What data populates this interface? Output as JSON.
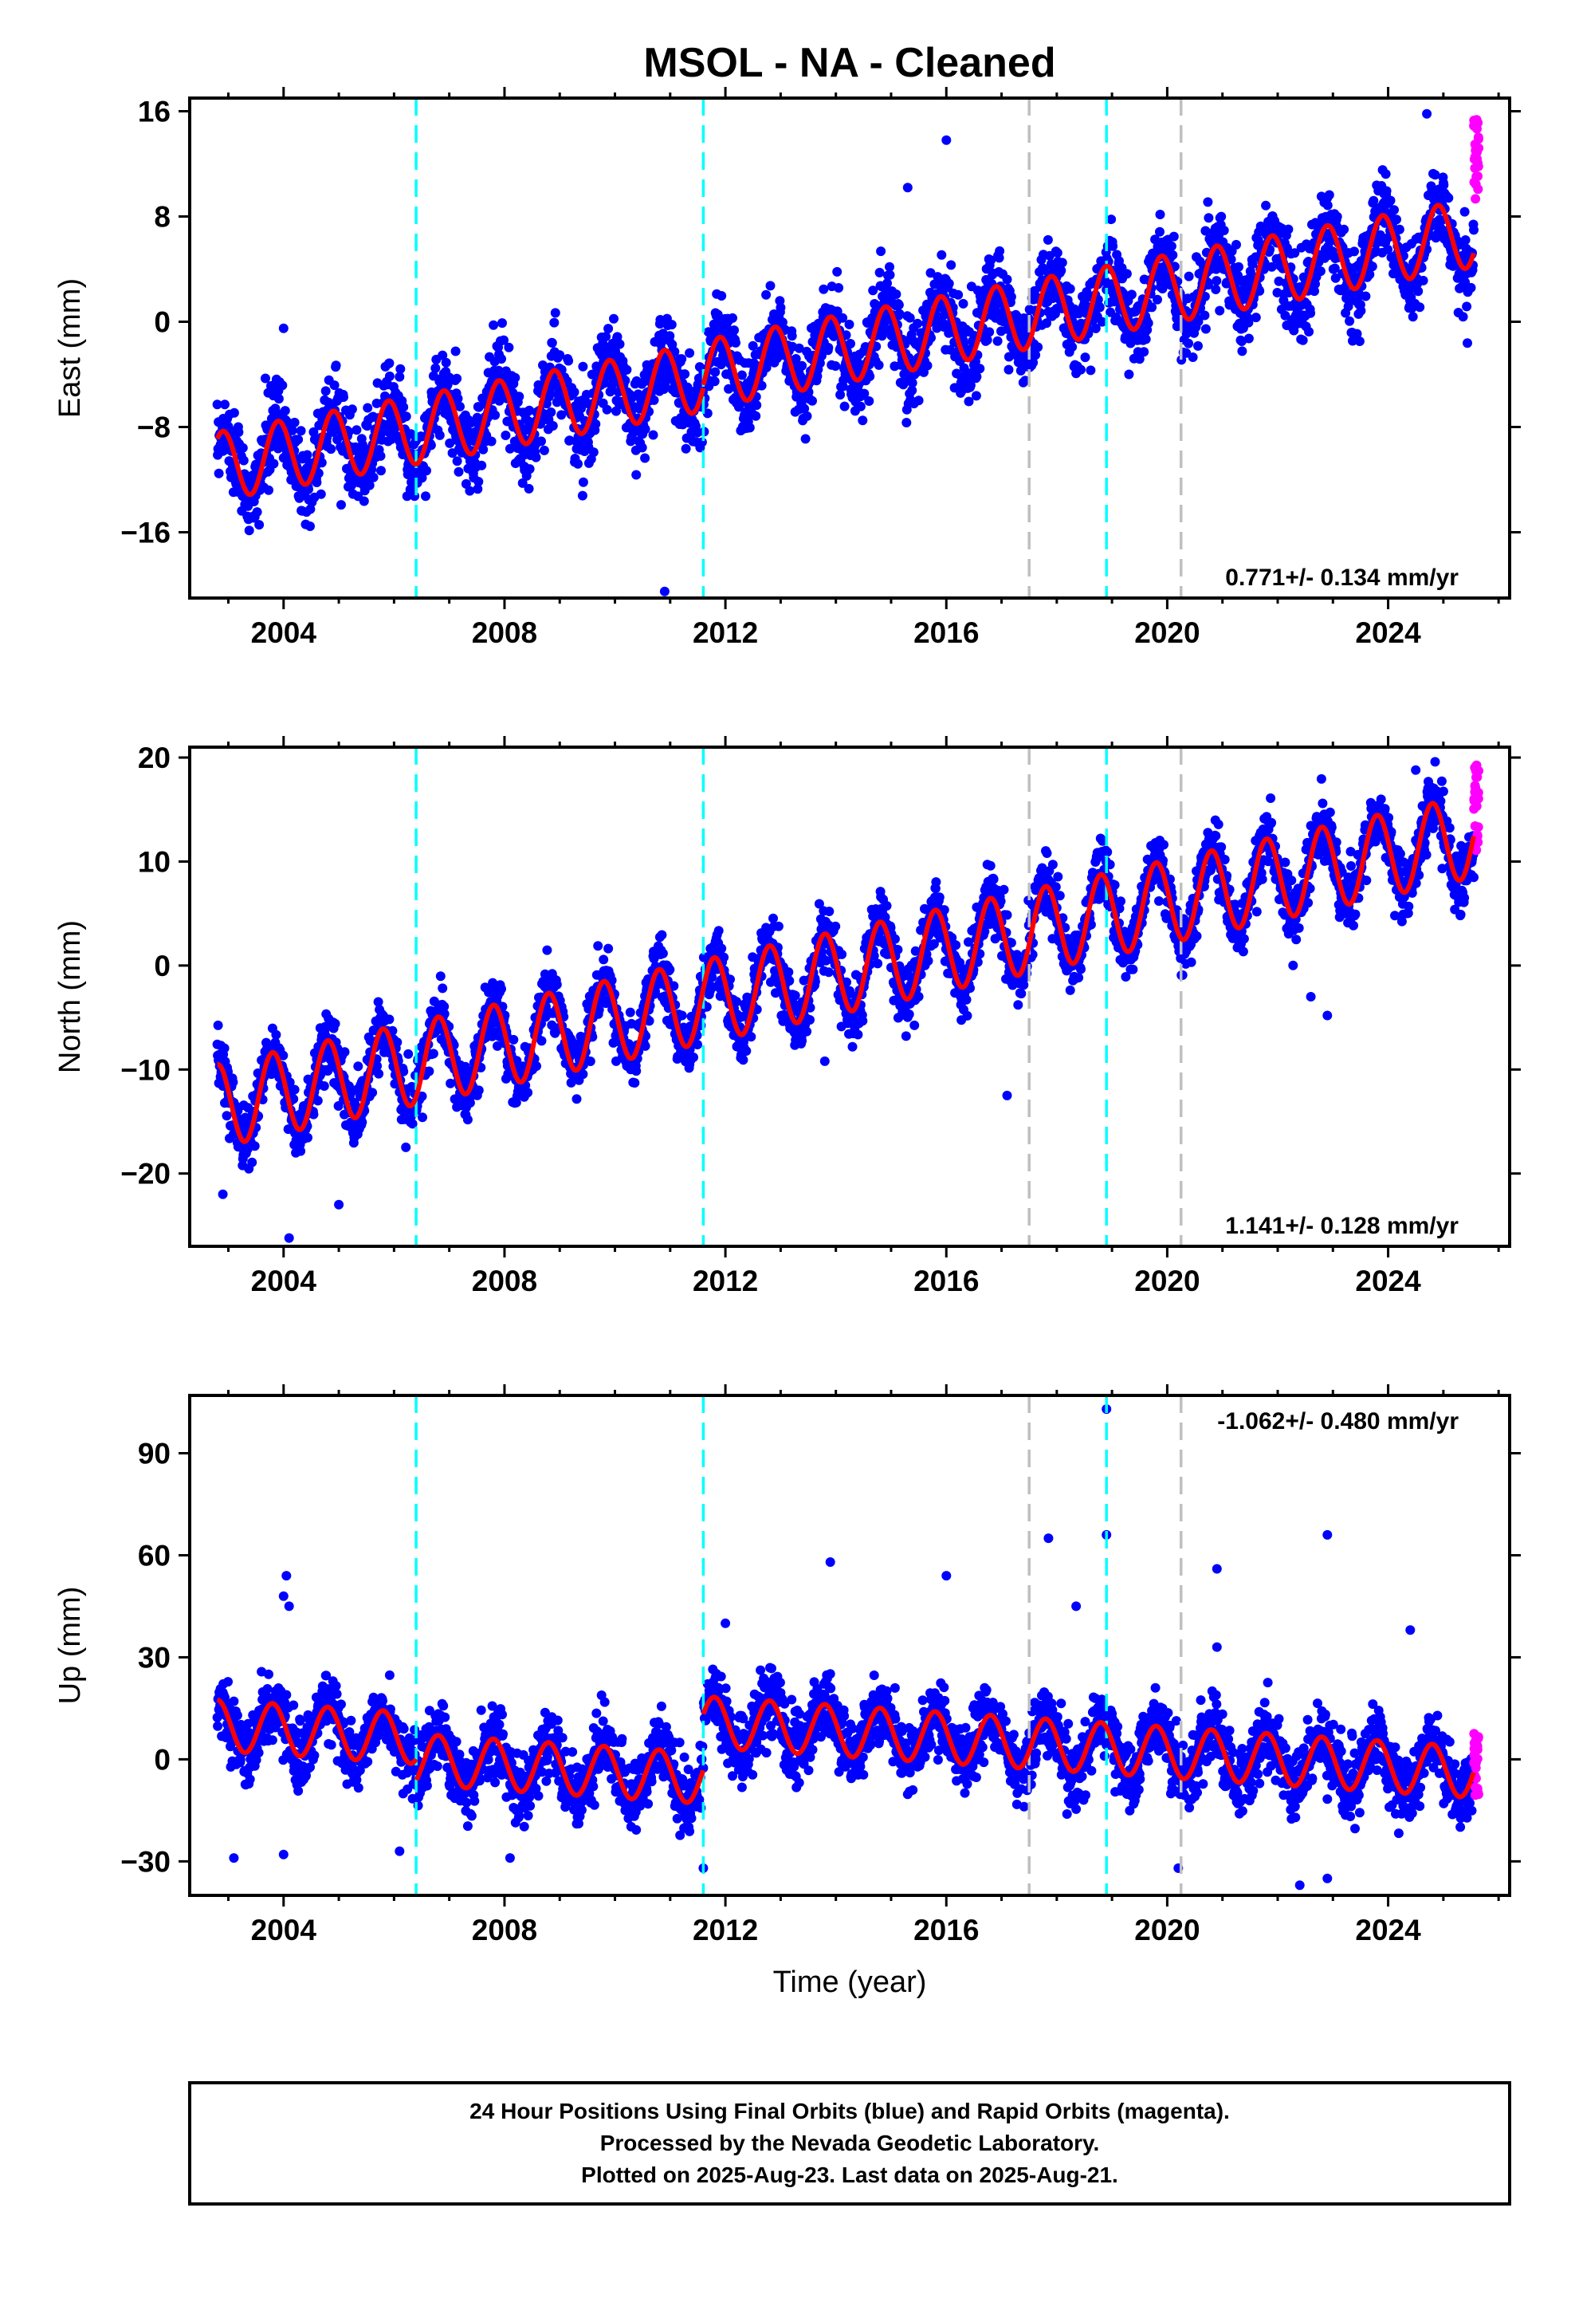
{
  "title": "MSOL  - NA - Cleaned",
  "xlabel": "Time (year)",
  "footer": [
    "24 Hour Positions Using Final Orbits (blue) and Rapid Orbits (magenta).",
    "Processed by the Nevada Geodetic Laboratory.",
    "Plotted on 2025-Aug-23. Last data on 2025-Aug-21."
  ],
  "colors": {
    "final_orbits": "#0000ff",
    "rapid_orbits": "#ff00ff",
    "model_fit": "#ff0000",
    "equipment_change": "#00ffff",
    "earthquake": "#bfbfbf"
  },
  "chart_data": [
    {
      "type": "scatter",
      "component": "east",
      "ylabel": "East (mm)",
      "xlim": [
        2002.3,
        2026.2
      ],
      "ylim": [
        -21,
        17
      ],
      "xticks": [
        2004,
        2008,
        2012,
        2016,
        2020,
        2024
      ],
      "yticks": [
        -16,
        -8,
        0,
        8,
        16
      ],
      "rate_text": "0.771+/- 0.134 mm/yr",
      "rate_position": "bottom-right",
      "equipment_change_years": [
        2006.4,
        2011.6,
        2018.9
      ],
      "earthquake_years": [
        2017.5,
        2020.25
      ],
      "model_segments": [
        {
          "start": 2002.8,
          "end": 2011.6,
          "offset": -11.0,
          "rate": 0.771,
          "amplitude": 2.6,
          "phase_year": 2002.65
        },
        {
          "start": 2011.6,
          "end": 2025.55,
          "offset": -4.0,
          "rate": 0.771,
          "amplitude": 2.6,
          "phase_year": 2002.65
        }
      ],
      "scatter_sd": 1.6,
      "outliers": [
        [
          2004.0,
          -0.5
        ],
        [
          2010.9,
          -20.5
        ],
        [
          2016.0,
          13.8
        ],
        [
          2015.3,
          10.2
        ],
        [
          2024.7,
          15.8
        ]
      ],
      "rapid_orbits": {
        "start": 2025.55,
        "end": 2025.64,
        "ymin": 9.0,
        "ymax": 15.5
      }
    },
    {
      "type": "scatter",
      "component": "north",
      "ylabel": "North (mm)",
      "xlim": [
        2002.3,
        2026.2
      ],
      "ylim": [
        -27,
        21
      ],
      "xticks": [
        2004,
        2008,
        2012,
        2016,
        2020,
        2024
      ],
      "yticks": [
        -20,
        -10,
        0,
        10,
        20
      ],
      "rate_text": "1.141+/- 0.128 mm/yr",
      "rate_position": "bottom-right",
      "equipment_change_years": [
        2006.4,
        2011.6,
        2018.9
      ],
      "earthquake_years": [
        2017.5,
        2020.25
      ],
      "model_segments": [
        {
          "start": 2002.8,
          "end": 2025.55,
          "offset": -13.5,
          "rate": 1.141,
          "amplitude": 4.0,
          "phase_year": 2002.55
        }
      ],
      "scatter_sd": 1.5,
      "outliers": [
        [
          2004.1,
          -26.2
        ],
        [
          2005.0,
          -23.0
        ],
        [
          2002.9,
          -22.0
        ],
        [
          2017.1,
          -12.5
        ],
        [
          2022.6,
          -3.0
        ],
        [
          2022.9,
          -4.8
        ],
        [
          2024.5,
          18.8
        ],
        [
          2013.8,
          -9.2
        ]
      ],
      "rapid_orbits": {
        "start": 2025.55,
        "end": 2025.64,
        "ymin": 9.5,
        "ymax": 20.0
      }
    },
    {
      "type": "scatter",
      "component": "up",
      "ylabel": "Up (mm)",
      "xlim": [
        2002.3,
        2026.2
      ],
      "ylim": [
        -40,
        107
      ],
      "xticks": [
        2004,
        2008,
        2012,
        2016,
        2020,
        2024
      ],
      "yticks": [
        -30,
        0,
        30,
        60,
        90
      ],
      "rate_text": "-1.062+/- 0.480 mm/yr",
      "rate_position": "top-right",
      "equipment_change_years": [
        2006.4,
        2011.6,
        2018.9
      ],
      "earthquake_years": [
        2017.5,
        2020.25
      ],
      "model_segments": [
        {
          "start": 2002.8,
          "end": 2006.4,
          "offset": 10.0,
          "rate": -1.062,
          "amplitude": 7.5,
          "phase_year": 2002.55
        },
        {
          "start": 2006.4,
          "end": 2011.6,
          "offset": 0.0,
          "rate": -1.062,
          "amplitude": 7.5,
          "phase_year": 2002.55
        },
        {
          "start": 2011.6,
          "end": 2025.55,
          "offset": 11.0,
          "rate": -1.062,
          "amplitude": 7.5,
          "phase_year": 2002.55
        }
      ],
      "scatter_sd": 5.0,
      "outliers": [
        [
          2018.9,
          103
        ],
        [
          2013.9,
          58
        ],
        [
          2017.85,
          65
        ],
        [
          2018.9,
          66
        ],
        [
          2016.0,
          54
        ],
        [
          2018.35,
          45
        ],
        [
          2020.9,
          56
        ],
        [
          2022.9,
          66
        ],
        [
          2020.9,
          33
        ],
        [
          2024.4,
          38
        ],
        [
          2012.0,
          40
        ],
        [
          2003.1,
          -29
        ],
        [
          2004.0,
          -28
        ],
        [
          2006.1,
          -27
        ],
        [
          2008.1,
          -29
        ],
        [
          2011.6,
          -32
        ],
        [
          2022.4,
          -37
        ],
        [
          2022.9,
          -35
        ],
        [
          2020.2,
          -32
        ],
        [
          2004.05,
          54
        ],
        [
          2004.0,
          48
        ],
        [
          2004.1,
          45
        ]
      ],
      "rapid_orbits": {
        "start": 2025.55,
        "end": 2025.64,
        "ymin": -11.0,
        "ymax": 8.0
      }
    }
  ]
}
